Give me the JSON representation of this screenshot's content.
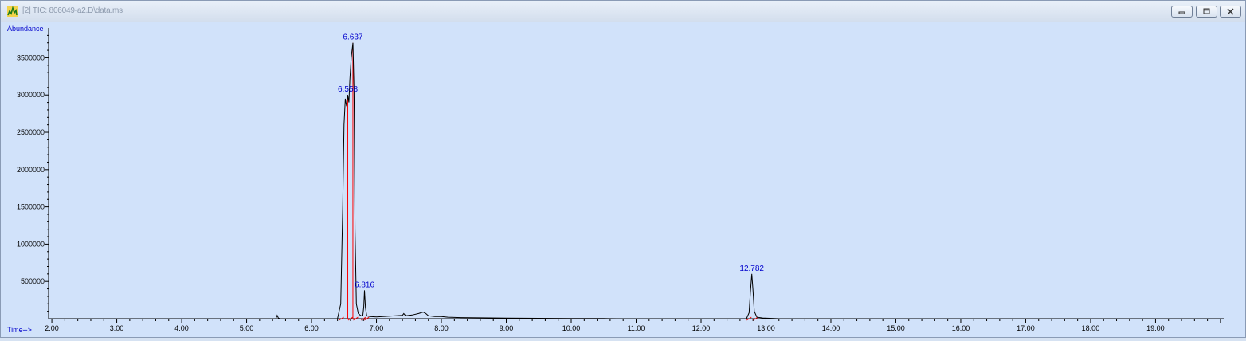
{
  "window": {
    "title": "[2] TIC: 806049-a2.D\\data.ms",
    "buttons": [
      "minimize",
      "restore",
      "close"
    ]
  },
  "colors": {
    "background": "#d1e2fa",
    "trace": "#000000",
    "baseline_marks": "#ff0000",
    "labels": "#0000cc"
  },
  "chart_data": {
    "type": "line",
    "title": "",
    "xlabel": "Time-->",
    "ylabel": "Abundance",
    "xlim": [
      1.95,
      20.05
    ],
    "ylim": [
      0,
      3900000
    ],
    "x_ticks": [
      "2.00",
      "3.00",
      "4.00",
      "5.00",
      "6.00",
      "7.00",
      "8.00",
      "9.00",
      "10.00",
      "11.00",
      "12.00",
      "13.00",
      "14.00",
      "15.00",
      "16.00",
      "17.00",
      "18.00",
      "19.00"
    ],
    "y_ticks": [
      "500000",
      "1000000",
      "1500000",
      "2000000",
      "2500000",
      "3000000",
      "3500000"
    ],
    "grid": false,
    "peaks": [
      {
        "rt": 6.558,
        "label": "6.558",
        "abundance": 3000000
      },
      {
        "rt": 6.637,
        "label": "6.637",
        "abundance": 3700000
      },
      {
        "rt": 6.816,
        "label": "6.816",
        "abundance": 380000
      },
      {
        "rt": 12.782,
        "label": "12.782",
        "abundance": 600000
      }
    ],
    "integration_bounds": [
      6.46,
      6.6,
      6.68,
      6.8,
      6.85,
      12.74,
      12.84
    ],
    "series": [
      {
        "x": [
          1.95,
          5.45,
          5.47,
          5.49,
          5.52,
          6.4,
          6.45,
          6.48,
          6.5,
          6.52,
          6.54,
          6.558,
          6.575,
          6.59,
          6.61,
          6.637,
          6.655,
          6.67,
          6.69,
          6.72,
          6.76,
          6.79,
          6.805,
          6.816,
          6.83,
          6.85,
          6.9,
          7.0,
          7.2,
          7.4,
          7.42,
          7.45,
          7.55,
          7.65,
          7.72,
          7.76,
          7.8,
          7.9,
          8.0,
          8.1,
          8.3,
          8.6,
          9.0,
          9.5,
          10.0,
          10.5,
          10.7,
          11.0,
          11.5,
          12.0,
          12.5,
          12.7,
          12.74,
          12.76,
          12.782,
          12.8,
          12.82,
          12.86,
          12.95,
          13.2,
          14.0,
          16.0,
          18.0,
          20.05
        ],
        "y": [
          0,
          0,
          45000,
          8000,
          0,
          0,
          200000,
          1500000,
          2600000,
          2950000,
          2850000,
          3000000,
          2900000,
          3200000,
          3500000,
          3700000,
          3050000,
          1200000,
          200000,
          70000,
          40000,
          40000,
          160000,
          380000,
          150000,
          40000,
          30000,
          25000,
          35000,
          45000,
          70000,
          40000,
          50000,
          70000,
          90000,
          70000,
          40000,
          30000,
          30000,
          20000,
          15000,
          12000,
          8000,
          5000,
          3000,
          2000,
          0,
          0,
          0,
          0,
          0,
          0,
          80000,
          350000,
          600000,
          380000,
          100000,
          20000,
          10000,
          0,
          0,
          0,
          0,
          0
        ]
      }
    ]
  }
}
